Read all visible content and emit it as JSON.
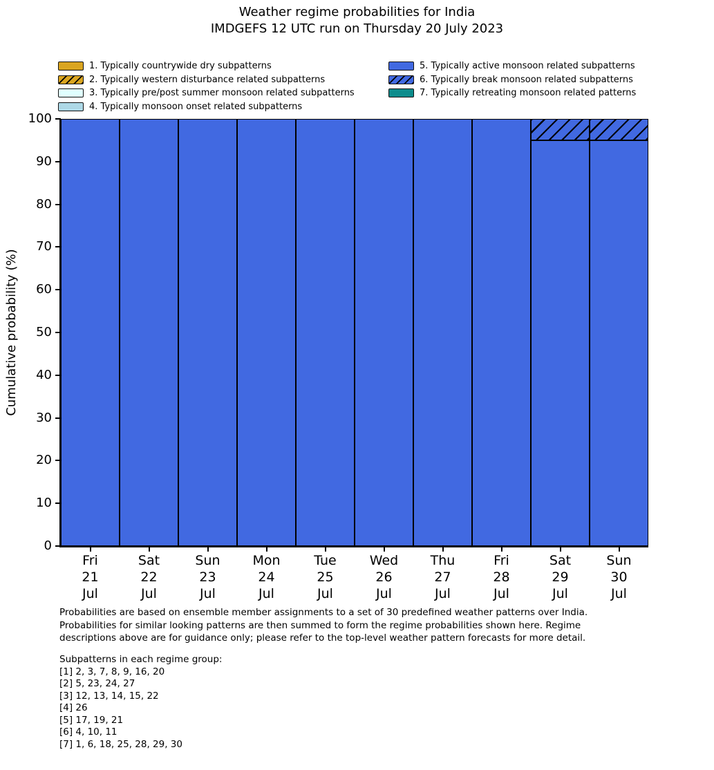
{
  "title": {
    "line1": "Weather regime probabilities for India",
    "line2": "IMDGEFS 12 UTC run on Thursday 20 July 2023"
  },
  "colors": {
    "regime_dry": "#DAA520",
    "regime_prepost": "#E0FFFF",
    "regime_onset": "#ADD8E6",
    "regime_active": "#4169E1",
    "regime_retreating": "#0D8C8C",
    "bar_edge": "#000000"
  },
  "legend": {
    "columns": [
      [
        {
          "label": "1. Typically countrywide dry subpatterns",
          "color": "#DAA520",
          "hatch": false
        },
        {
          "label": "2. Typically western disturbance related subpatterns",
          "color": "#DAA520",
          "hatch": true
        },
        {
          "label": "3. Typically pre/post summer monsoon related subpatterns",
          "color": "#E0FFFF",
          "hatch": false
        },
        {
          "label": "4. Typically monsoon onset related subpatterns",
          "color": "#ADD8E6",
          "hatch": false
        }
      ],
      [
        {
          "label": "5. Typically active monsoon related subpatterns",
          "color": "#4169E1",
          "hatch": false
        },
        {
          "label": "6. Typically break monsoon related subpatterns",
          "color": "#4169E1",
          "hatch": true
        },
        {
          "label": "7. Typically retreating monsoon related patterns",
          "color": "#0D8C8C",
          "hatch": false
        }
      ]
    ]
  },
  "chart_data": {
    "type": "bar",
    "stacked": true,
    "title": "Weather regime probabilities for India — IMDGEFS 12 UTC run on Thursday 20 July 2023",
    "xlabel": "",
    "ylabel": "Cumulative probability (%)",
    "ylim": [
      0,
      100
    ],
    "y_ticks": [
      0,
      10,
      20,
      30,
      40,
      50,
      60,
      70,
      80,
      90,
      100
    ],
    "grid": false,
    "legend_position": "above plot, two columns",
    "categories": [
      {
        "day": "Fri",
        "date": "21",
        "month": "Jul"
      },
      {
        "day": "Sat",
        "date": "22",
        "month": "Jul"
      },
      {
        "day": "Sun",
        "date": "23",
        "month": "Jul"
      },
      {
        "day": "Mon",
        "date": "24",
        "month": "Jul"
      },
      {
        "day": "Tue",
        "date": "25",
        "month": "Jul"
      },
      {
        "day": "Wed",
        "date": "26",
        "month": "Jul"
      },
      {
        "day": "Thu",
        "date": "27",
        "month": "Jul"
      },
      {
        "day": "Fri",
        "date": "28",
        "month": "Jul"
      },
      {
        "day": "Sat",
        "date": "29",
        "month": "Jul"
      },
      {
        "day": "Sun",
        "date": "30",
        "month": "Jul"
      }
    ],
    "series": [
      {
        "name": "1. Typically countrywide dry subpatterns",
        "color": "#DAA520",
        "hatch": false,
        "values": [
          0,
          0,
          0,
          0,
          0,
          0,
          0,
          0,
          0,
          0
        ]
      },
      {
        "name": "2. Typically western disturbance related subpatterns",
        "color": "#DAA520",
        "hatch": true,
        "values": [
          0,
          0,
          0,
          0,
          0,
          0,
          0,
          0,
          0,
          0
        ]
      },
      {
        "name": "3. Typically pre/post summer monsoon related subpatterns",
        "color": "#E0FFFF",
        "hatch": false,
        "values": [
          0,
          0,
          0,
          0,
          0,
          0,
          0,
          0,
          0,
          0
        ]
      },
      {
        "name": "4. Typically monsoon onset related subpatterns",
        "color": "#ADD8E6",
        "hatch": false,
        "values": [
          0,
          0,
          0,
          0,
          0,
          0,
          0,
          0,
          0,
          0
        ]
      },
      {
        "name": "5. Typically active monsoon related subpatterns",
        "color": "#4169E1",
        "hatch": false,
        "values": [
          100,
          100,
          100,
          100,
          100,
          100,
          100,
          100,
          95,
          95
        ]
      },
      {
        "name": "6. Typically break monsoon related subpatterns",
        "color": "#4169E1",
        "hatch": true,
        "values": [
          0,
          0,
          0,
          0,
          0,
          0,
          0,
          0,
          5,
          5
        ]
      },
      {
        "name": "7. Typically retreating monsoon related patterns",
        "color": "#0D8C8C",
        "hatch": false,
        "values": [
          0,
          0,
          0,
          0,
          0,
          0,
          0,
          0,
          0,
          0
        ]
      }
    ]
  },
  "footnote_lines": [
    "Probabilities are based on ensemble member assignments to a set of 30 predefined weather patterns over India.",
    "Probabilities for similar looking patterns are then summed to form the regime probabilities shown here. Regime",
    "descriptions above are for guidance only; please refer to the top-level weather pattern forecasts for more detail."
  ],
  "subpatterns": {
    "heading": "Subpatterns in each regime group:",
    "groups": [
      "[1] 2, 3, 7, 8, 9, 16, 20",
      "[2] 5, 23, 24, 27",
      "[3] 12, 13, 14, 15, 22",
      "[4] 26",
      "[5] 17, 19, 21",
      "[6] 4, 10, 11",
      "[7] 1, 6, 18, 25, 28, 29, 30"
    ]
  }
}
